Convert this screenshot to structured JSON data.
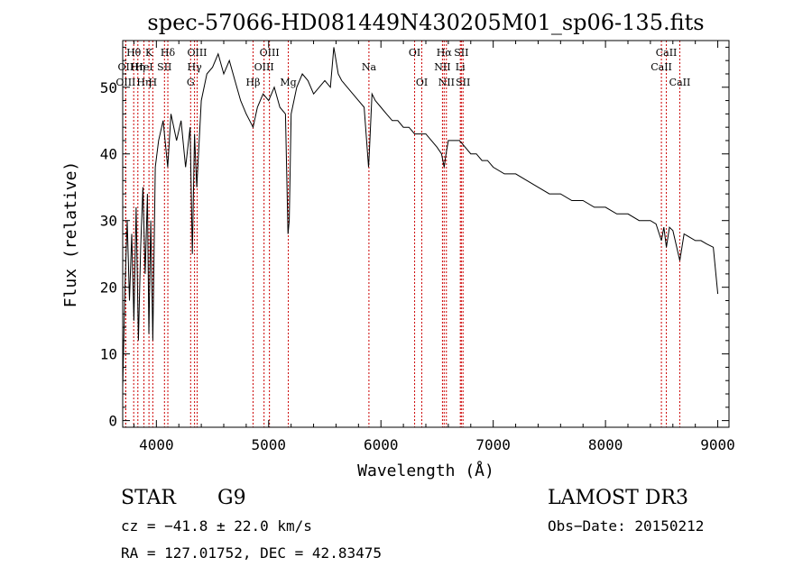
{
  "chart_data": {
    "type": "line",
    "title": "spec-57066-HD081449N430205M01_sp06-135.fits",
    "xlabel": "Wavelength (Å)",
    "ylabel": "Flux (relative)",
    "xlim": [
      3700,
      9100
    ],
    "ylim": [
      -1,
      57
    ],
    "xticks": [
      4000,
      5000,
      6000,
      7000,
      8000,
      9000
    ],
    "yticks": [
      0,
      10,
      20,
      30,
      40,
      50
    ],
    "series": [
      {
        "name": "spectrum",
        "x": [
          3700,
          3720,
          3740,
          3760,
          3780,
          3800,
          3820,
          3840,
          3860,
          3880,
          3900,
          3920,
          3933,
          3950,
          3968,
          3990,
          4020,
          4060,
          4101,
          4130,
          4180,
          4220,
          4260,
          4300,
          4320,
          4340,
          4360,
          4400,
          4450,
          4500,
          4550,
          4600,
          4650,
          4700,
          4750,
          4800,
          4861,
          4900,
          4950,
          5000,
          5050,
          5100,
          5150,
          5172,
          5183,
          5200,
          5250,
          5300,
          5350,
          5400,
          5450,
          5500,
          5550,
          5580,
          5620,
          5650,
          5700,
          5750,
          5800,
          5850,
          5890,
          5896,
          5920,
          5950,
          6000,
          6050,
          6100,
          6150,
          6200,
          6250,
          6300,
          6350,
          6400,
          6450,
          6500,
          6540,
          6563,
          6580,
          6600,
          6650,
          6700,
          6750,
          6800,
          6850,
          6900,
          6950,
          7000,
          7100,
          7200,
          7300,
          7400,
          7500,
          7600,
          7700,
          7800,
          7900,
          8000,
          8100,
          8200,
          8300,
          8400,
          8450,
          8498,
          8520,
          8542,
          8570,
          8600,
          8662,
          8700,
          8750,
          8800,
          8850,
          8900,
          8960,
          9000
        ],
        "y": [
          5,
          20,
          30,
          18,
          28,
          15,
          32,
          12,
          26,
          35,
          22,
          34,
          13,
          30,
          12,
          38,
          42,
          45,
          38,
          46,
          42,
          45,
          38,
          44,
          25,
          43,
          35,
          48,
          52,
          53,
          55,
          52,
          54,
          51,
          48,
          46,
          44,
          47,
          49,
          48,
          50,
          47,
          46,
          28,
          30,
          46,
          50,
          52,
          51,
          49,
          50,
          51,
          50,
          56,
          52,
          51,
          50,
          49,
          48,
          47,
          38,
          40,
          49,
          48,
          47,
          46,
          45,
          45,
          44,
          44,
          43,
          43,
          43,
          42,
          41,
          40,
          38,
          40,
          42,
          42,
          42,
          41,
          40,
          40,
          39,
          39,
          38,
          37,
          37,
          36,
          35,
          34,
          34,
          33,
          33,
          32,
          32,
          31,
          31,
          30,
          30,
          29.5,
          27,
          29,
          26,
          29,
          28.5,
          24,
          28,
          27.5,
          27,
          27,
          26.5,
          26,
          19
        ]
      }
    ],
    "lines": [
      {
        "name": "Hθ",
        "x": 3798,
        "tier": 0
      },
      {
        "name": "OII",
        "x": 3727,
        "tier": 1
      },
      {
        "name": "OIII",
        "x": 3727,
        "tier": 2
      },
      {
        "name": "Hη",
        "x": 3835,
        "tier": 1
      },
      {
        "name": "Hη",
        "x": 3889,
        "tier": 2
      },
      {
        "name": "K",
        "x": 3934,
        "tier": 0
      },
      {
        "name": "HeI",
        "x": 3889,
        "tier": 1
      },
      {
        "name": "SII",
        "x": 4072,
        "tier": 1
      },
      {
        "name": "H",
        "x": 3968,
        "tier": 2
      },
      {
        "name": "Hδ",
        "x": 4102,
        "tier": 0
      },
      {
        "name": "OIII",
        "x": 4363,
        "tier": 0
      },
      {
        "name": "Hγ",
        "x": 4340,
        "tier": 1
      },
      {
        "name": "G",
        "x": 4305,
        "tier": 2
      },
      {
        "name": "OIII",
        "x": 5007,
        "tier": 0
      },
      {
        "name": "OIII",
        "x": 4959,
        "tier": 1
      },
      {
        "name": "Hβ",
        "x": 4861,
        "tier": 2
      },
      {
        "name": "Mg",
        "x": 5175,
        "tier": 2
      },
      {
        "name": "Na",
        "x": 5893,
        "tier": 1
      },
      {
        "name": "OI",
        "x": 6300,
        "tier": 0
      },
      {
        "name": "OI",
        "x": 6364,
        "tier": 2
      },
      {
        "name": "Hα",
        "x": 6563,
        "tier": 0
      },
      {
        "name": "NII",
        "x": 6548,
        "tier": 1
      },
      {
        "name": "NII",
        "x": 6583,
        "tier": 2
      },
      {
        "name": "SII",
        "x": 6716,
        "tier": 0
      },
      {
        "name": "Li",
        "x": 6707,
        "tier": 1
      },
      {
        "name": "SII",
        "x": 6731,
        "tier": 2
      },
      {
        "name": "CaII",
        "x": 8542,
        "tier": 0
      },
      {
        "name": "CaII",
        "x": 8498,
        "tier": 1
      },
      {
        "name": "CaII",
        "x": 8662,
        "tier": 2
      }
    ],
    "grid": false,
    "legend": "none"
  },
  "info": {
    "object_class": "STAR",
    "subclass": "G9",
    "survey": "LAMOST DR3",
    "redshift": "cz = −41.8 ± 22.0 km/s",
    "obs_date": "Obs−Date: 20150212",
    "coords": "RA = 127.01752, DEC =  42.83475"
  },
  "colors": {
    "line_marker": "#cc0000",
    "spectrum": "#000000",
    "background": "#ffffff"
  }
}
